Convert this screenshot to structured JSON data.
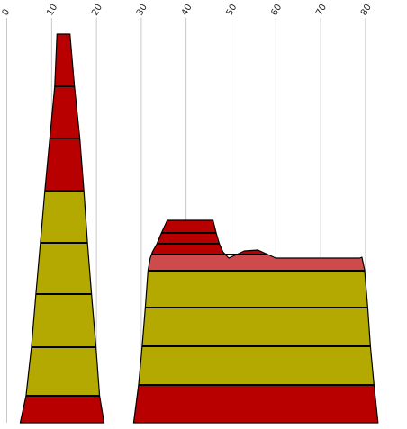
{
  "chart_data": {
    "type": "area",
    "grid": true,
    "x_axis": {
      "position": "top",
      "range": [
        0,
        85
      ],
      "ticks": [
        0,
        10,
        20,
        30,
        40,
        50,
        60,
        70,
        80
      ],
      "tick_labels": [
        "0",
        "10",
        "20",
        "30",
        "40",
        "50",
        "60",
        "70",
        "80"
      ]
    },
    "y_axis": {
      "range": [
        0,
        440
      ],
      "shown": false
    },
    "colors": {
      "red": "#b80000",
      "olive": "#b3a900",
      "pink": "#cf4a4a",
      "outline": "#000000",
      "grid": "#bbbbbb"
    },
    "shapes": [
      {
        "name": "left-spire",
        "profile": [
          [
            3,
            0
          ],
          [
            21.7,
            0
          ],
          [
            20.7,
            30
          ],
          [
            19.9,
            84
          ],
          [
            18.9,
            143
          ],
          [
            18,
            200
          ],
          [
            17.2,
            258
          ],
          [
            16.3,
            316
          ],
          [
            15.1,
            374
          ],
          [
            14.1,
            432
          ],
          [
            11.2,
            432
          ],
          [
            10.7,
            374
          ],
          [
            9.6,
            316
          ],
          [
            8.5,
            258
          ],
          [
            7.5,
            200
          ],
          [
            6.5,
            143
          ],
          [
            5.5,
            84
          ],
          [
            4.3,
            30
          ]
        ],
        "bands": [
          {
            "from": 0,
            "to": 30,
            "color": "red"
          },
          {
            "from": 30,
            "to": 84,
            "color": "olive"
          },
          {
            "from": 84,
            "to": 143,
            "color": "olive"
          },
          {
            "from": 143,
            "to": 200,
            "color": "olive"
          },
          {
            "from": 200,
            "to": 258,
            "color": "olive"
          },
          {
            "from": 258,
            "to": 316,
            "color": "red"
          },
          {
            "from": 316,
            "to": 374,
            "color": "red"
          },
          {
            "from": 374,
            "to": 432,
            "color": "red"
          }
        ]
      },
      {
        "name": "right-plateau",
        "profile": [
          [
            28.3,
            0
          ],
          [
            82.8,
            0
          ],
          [
            81.9,
            42
          ],
          [
            81.1,
            85
          ],
          [
            80.5,
            128
          ],
          [
            79.8,
            170
          ],
          [
            79.2,
            184
          ],
          [
            78.7,
            183
          ],
          [
            60,
            183
          ],
          [
            56,
            192
          ],
          [
            53,
            191
          ],
          [
            49.5,
            183
          ],
          [
            48.2,
            190
          ],
          [
            47.4,
            199
          ],
          [
            46.7,
            211
          ],
          [
            46,
            225
          ],
          [
            35.8,
            225
          ],
          [
            34.5,
            211
          ],
          [
            33.5,
            199
          ],
          [
            32.5,
            190
          ],
          [
            32,
            183
          ],
          [
            31.5,
            169
          ],
          [
            30.9,
            128
          ],
          [
            30.2,
            85
          ],
          [
            29.4,
            42
          ]
        ],
        "bands": [
          {
            "from": 0,
            "to": 42,
            "color": "red"
          },
          {
            "from": 42,
            "to": 85,
            "color": "olive"
          },
          {
            "from": 85,
            "to": 128,
            "color": "olive"
          },
          {
            "from": 128,
            "to": 169,
            "color": "olive"
          },
          {
            "from": 169,
            "to": 187,
            "color": "pink"
          },
          {
            "from": 187,
            "to": 199,
            "color": "red"
          },
          {
            "from": 199,
            "to": 211,
            "color": "red"
          },
          {
            "from": 211,
            "to": 225,
            "color": "red"
          }
        ]
      }
    ]
  }
}
